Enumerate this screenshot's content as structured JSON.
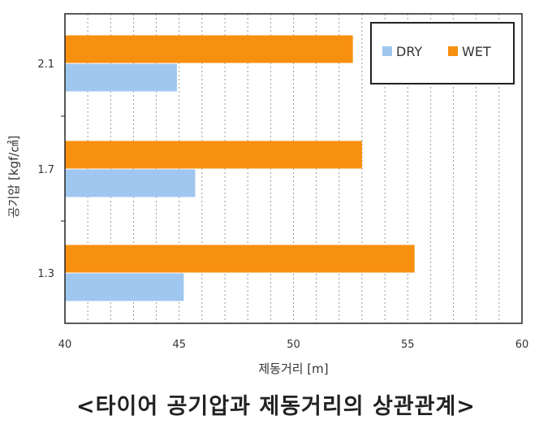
{
  "caption": "<타이어 공기압과 제동거리의 상관관계>",
  "colors": {
    "dry": "#9fc7ef",
    "wet": "#f7900f",
    "frame": "#222222",
    "grid": "#9a9a9a",
    "text": "#333333"
  },
  "chart_data": {
    "type": "bar",
    "orientation": "horizontal",
    "categories": [
      "2.1",
      "1.7",
      "1.3"
    ],
    "series": [
      {
        "name": "DRY",
        "values": [
          44.9,
          45.7,
          45.2
        ]
      },
      {
        "name": "WET",
        "values": [
          52.6,
          53.0,
          55.3
        ]
      }
    ],
    "xlabel": "제동거리 [m]",
    "ylabel": "공기압 [kgf/㎠]",
    "xlim": [
      40,
      60
    ],
    "xticks": [
      "40",
      "45",
      "50",
      "55",
      "60"
    ],
    "grid": "vertical dotted",
    "legend_position": "top-right"
  }
}
